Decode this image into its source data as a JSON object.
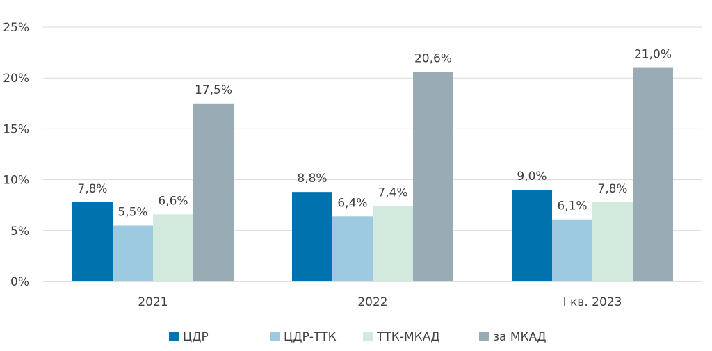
{
  "chart_data": {
    "type": "bar",
    "categories": [
      "2021",
      "2022",
      "I кв. 2023"
    ],
    "series": [
      {
        "name": "ЦДР",
        "values": [
          7.8,
          8.8,
          9.0
        ],
        "labels": [
          "7,8%",
          "8,8%",
          "9,0%"
        ],
        "color": "#0073ae"
      },
      {
        "name": "ЦДР-ТТК",
        "values": [
          5.5,
          6.4,
          6.1
        ],
        "labels": [
          "5,5%",
          "6,4%",
          "6,1%"
        ],
        "color": "#9dcae1"
      },
      {
        "name": "ТТК-МКАД",
        "values": [
          6.6,
          7.4,
          7.8
        ],
        "labels": [
          "6,6%",
          "7,4%",
          "7,8%"
        ],
        "color": "#d2eade"
      },
      {
        "name": "за МКАД",
        "values": [
          17.5,
          20.6,
          21.0
        ],
        "labels": [
          "17,5%",
          "20,6%",
          "21,0%"
        ],
        "color": "#99acb6"
      }
    ],
    "yticks": [
      0,
      5,
      10,
      15,
      20,
      25
    ],
    "ytick_labels": [
      "0%",
      "5%",
      "10%",
      "15%",
      "20%",
      "25%"
    ],
    "ylim": [
      0,
      25
    ],
    "grid": true,
    "legend_position": "bottom"
  }
}
